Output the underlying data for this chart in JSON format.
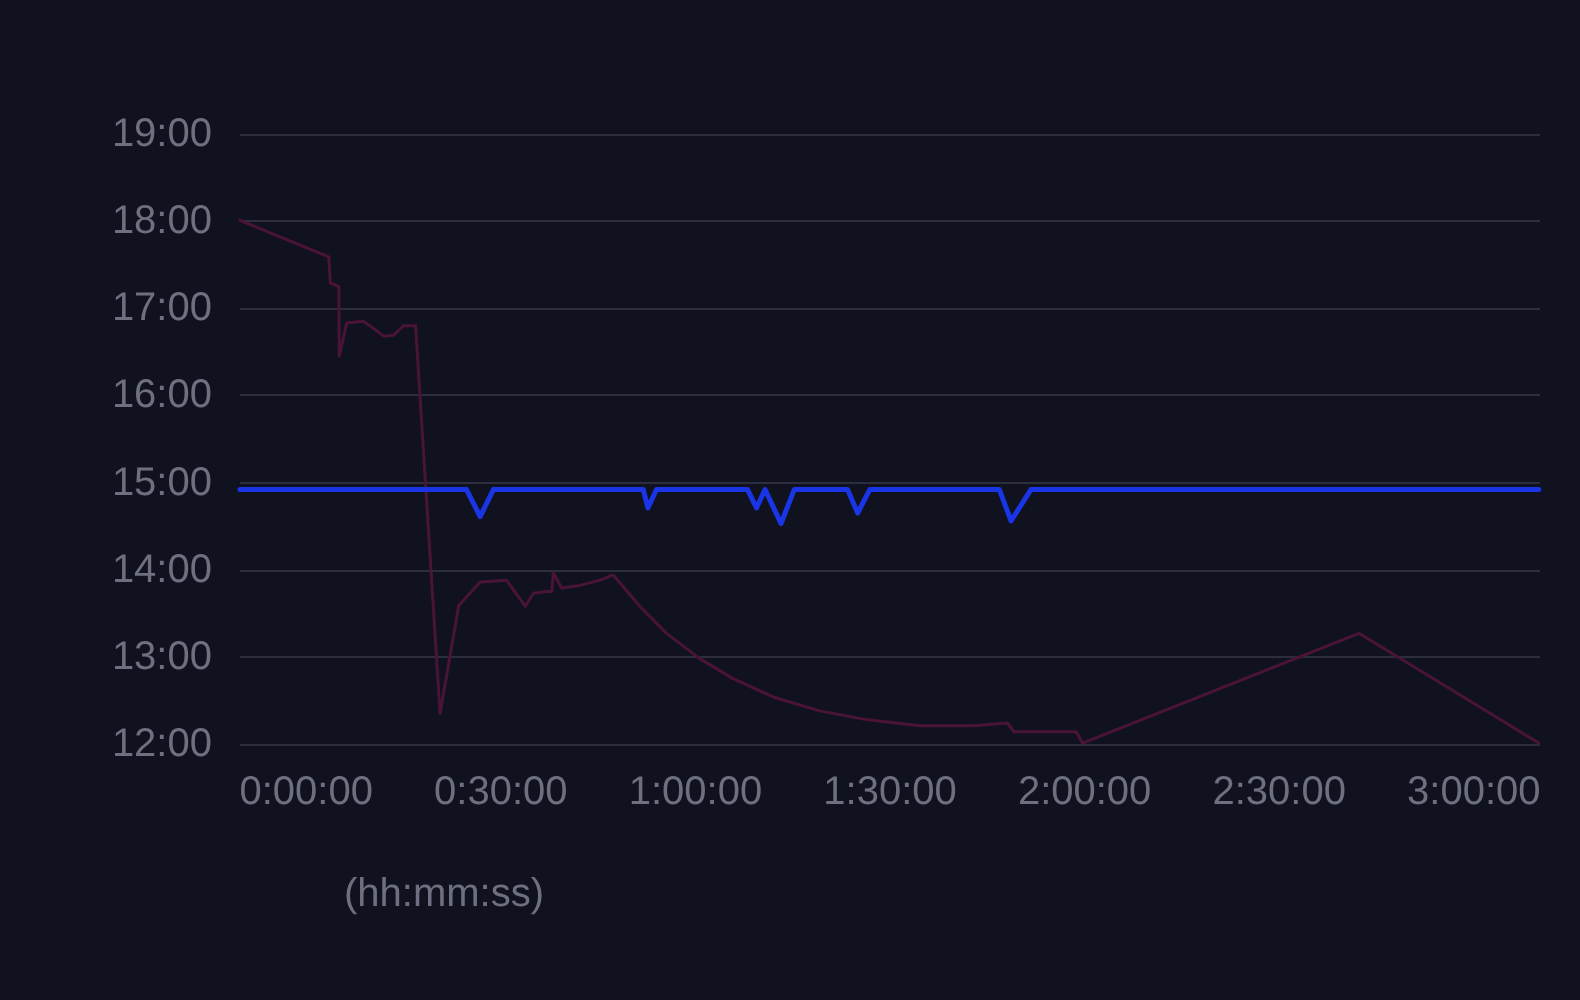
{
  "chart_data": {
    "type": "line",
    "xlabel": "(hh:mm:ss)",
    "xlim": [
      -0.17,
      3.17
    ],
    "xticks": [
      {
        "value": 0,
        "label": "0:00:00"
      },
      {
        "value": 0.5,
        "label": "0:30:00"
      },
      {
        "value": 1,
        "label": "1:00:00"
      },
      {
        "value": 1.5,
        "label": "1:30:00"
      },
      {
        "value": 2,
        "label": "2:00:00"
      },
      {
        "value": 2.5,
        "label": "2:30:00"
      },
      {
        "value": 3,
        "label": "3:00:00"
      }
    ],
    "ylim": [
      12,
      19
    ],
    "yticks": [
      {
        "value": 12,
        "label": "12:00"
      },
      {
        "value": 13,
        "label": "13:00"
      },
      {
        "value": 14,
        "label": "14:00"
      },
      {
        "value": 15,
        "label": "15:00"
      },
      {
        "value": 16,
        "label": "16:00"
      },
      {
        "value": 17,
        "label": "17:00"
      },
      {
        "value": 18,
        "label": "18:00"
      },
      {
        "value": 19,
        "label": "19:00"
      }
    ],
    "grid": "y",
    "marker": "none",
    "line_style": "solid",
    "series": [
      {
        "color": "#4a1438",
        "x": [
          -0.17,
          0.058,
          0.062,
          0.084,
          0.085,
          0.104,
          0.147,
          0.173,
          0.199,
          0.224,
          0.25,
          0.281,
          0.344,
          0.392,
          0.447,
          0.515,
          0.563,
          0.584,
          0.618,
          0.631,
          0.635,
          0.656,
          0.703,
          0.755,
          0.789,
          0.857,
          0.926,
          1.011,
          1.097,
          1.2,
          1.319,
          1.439,
          1.576,
          1.713,
          1.802,
          1.819,
          1.978,
          1.995,
          2.705,
          3.167
        ],
        "values": [
          18.01,
          17.59,
          17.29,
          17.25,
          16.45,
          16.83,
          16.85,
          16.77,
          16.68,
          16.69,
          16.8,
          16.8,
          12.35,
          13.59,
          13.86,
          13.88,
          13.58,
          13.73,
          13.75,
          13.75,
          13.97,
          13.79,
          13.82,
          13.88,
          13.94,
          13.58,
          13.27,
          12.98,
          12.75,
          12.54,
          12.38,
          12.28,
          12.21,
          12.21,
          12.24,
          12.14,
          12.14,
          12.01,
          13.27,
          12.01
        ]
      },
      {
        "color": "#1a35e6",
        "x": [
          -0.17,
          0.412,
          0.447,
          0.481,
          0.866,
          0.878,
          0.9,
          1.134,
          1.157,
          1.179,
          1.22,
          1.254,
          1.391,
          1.417,
          1.448,
          1.781,
          1.811,
          1.862,
          3.167
        ],
        "values": [
          14.92,
          14.92,
          14.61,
          14.92,
          14.92,
          14.71,
          14.92,
          14.92,
          14.71,
          14.92,
          14.53,
          14.92,
          14.92,
          14.65,
          14.92,
          14.92,
          14.56,
          14.92,
          14.92
        ]
      }
    ]
  }
}
